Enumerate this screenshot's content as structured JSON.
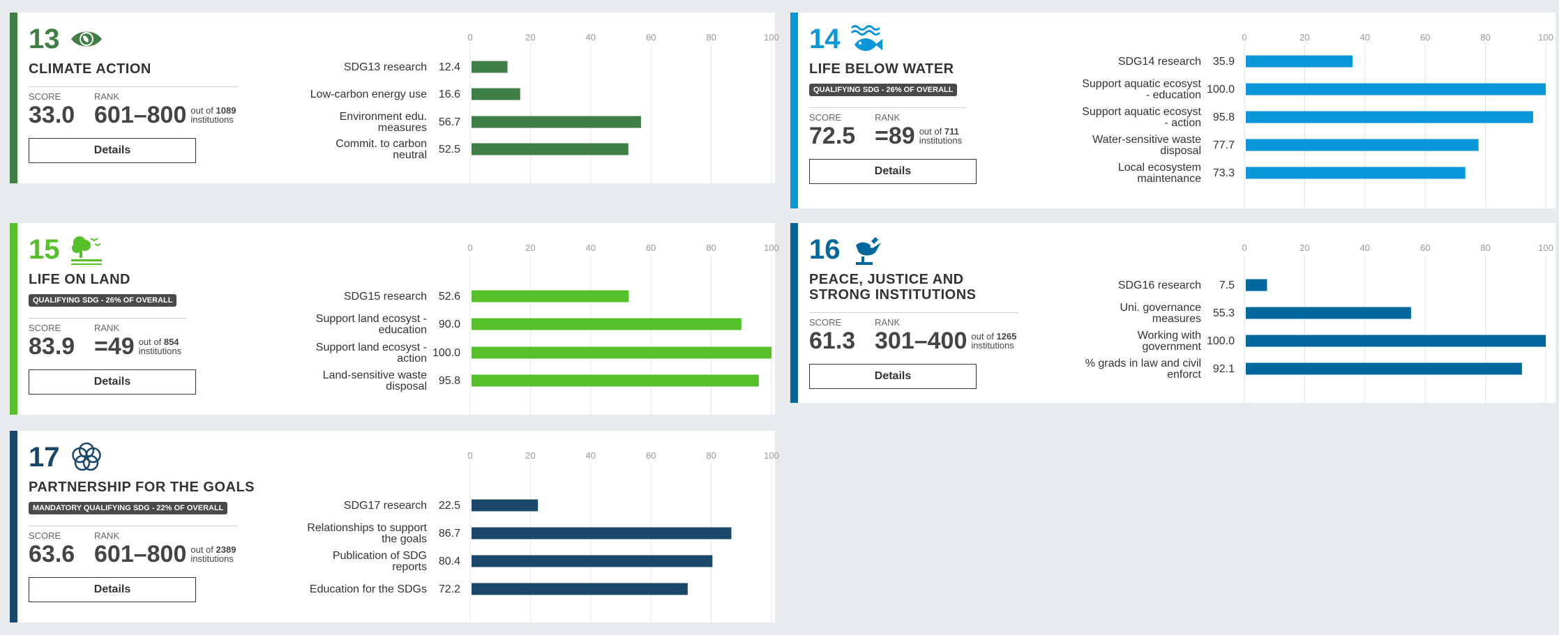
{
  "cards": [
    {
      "id": "13",
      "number": "13",
      "title": "CLIMATE ACTION",
      "color": "#3f7e44",
      "badge": "",
      "icon": "eye-earth-icon",
      "score_label": "SCORE",
      "score": "33.0",
      "rank_label": "RANK",
      "rank": "601–800",
      "out_of_prefix": "out of",
      "out_of_count": "1089",
      "out_of_suffix": "institutions",
      "details_label": "Details",
      "chart_data": {
        "type": "bar",
        "categories": [
          [
            "SDG13 research"
          ],
          [
            "Low-carbon energy use"
          ],
          [
            "Environment edu.",
            "measures"
          ],
          [
            "Commit. to carbon",
            "neutral"
          ]
        ],
        "values": [
          12.4,
          16.6,
          56.7,
          52.5
        ],
        "value_labels": [
          "12.4",
          "16.6",
          "56.7",
          "52.5"
        ],
        "xlim": [
          0,
          100
        ],
        "ticks": [
          "0",
          "20",
          "40",
          "60",
          "80",
          "100"
        ]
      }
    },
    {
      "id": "14",
      "number": "14",
      "title": "LIFE BELOW WATER",
      "color": "#0a97d9",
      "badge": "QUALIFYING SDG - 26% OF OVERALL",
      "icon": "fish-icon",
      "score_label": "SCORE",
      "score": "72.5",
      "rank_label": "RANK",
      "rank": "=89",
      "out_of_prefix": "out of",
      "out_of_count": "711",
      "out_of_suffix": "institutions",
      "details_label": "Details",
      "chart_data": {
        "type": "bar",
        "categories": [
          [
            "SDG14 research"
          ],
          [
            "Support aquatic ecosyst",
            "- education"
          ],
          [
            "Support aquatic ecosyst",
            "- action"
          ],
          [
            "Water-sensitive waste",
            "disposal"
          ],
          [
            "Local ecosystem",
            "maintenance"
          ]
        ],
        "values": [
          35.9,
          100.0,
          95.8,
          77.7,
          73.3
        ],
        "value_labels": [
          "35.9",
          "100.0",
          "95.8",
          "77.7",
          "73.3"
        ],
        "xlim": [
          0,
          100
        ],
        "ticks": [
          "0",
          "20",
          "40",
          "60",
          "80",
          "100"
        ]
      }
    },
    {
      "id": "15",
      "number": "15",
      "title": "LIFE ON LAND",
      "color": "#56c02b",
      "badge": "QUALIFYING SDG - 26% OF OVERALL",
      "icon": "tree-bird-icon",
      "score_label": "SCORE",
      "score": "83.9",
      "rank_label": "RANK",
      "rank": "=49",
      "out_of_prefix": "out of",
      "out_of_count": "854",
      "out_of_suffix": "institutions",
      "details_label": "Details",
      "chart_data": {
        "type": "bar",
        "categories": [
          [
            "SDG15 research"
          ],
          [
            "Support land ecosyst -",
            "education"
          ],
          [
            "Support land ecosyst -",
            "action"
          ],
          [
            "Land-sensitive waste",
            "disposal"
          ]
        ],
        "values": [
          52.6,
          90.0,
          100.0,
          95.8
        ],
        "value_labels": [
          "52.6",
          "90.0",
          "100.0",
          "95.8"
        ],
        "xlim": [
          0,
          100
        ],
        "ticks": [
          "0",
          "20",
          "40",
          "60",
          "80",
          "100"
        ]
      }
    },
    {
      "id": "16",
      "number": "16",
      "title": "PEACE, JUSTICE AND STRONG INSTITUTIONS",
      "color": "#00689d",
      "badge": "",
      "icon": "dove-gavel-icon",
      "score_label": "SCORE",
      "score": "61.3",
      "rank_label": "RANK",
      "rank": "301–400",
      "out_of_prefix": "out of",
      "out_of_count": "1265",
      "out_of_suffix": "institutions",
      "details_label": "Details",
      "chart_data": {
        "type": "bar",
        "categories": [
          [
            "SDG16 research"
          ],
          [
            "Uni. governance",
            "measures"
          ],
          [
            "Working with",
            "government"
          ],
          [
            "% grads in law and civil",
            "enforct"
          ]
        ],
        "values": [
          7.5,
          55.3,
          100.0,
          92.1
        ],
        "value_labels": [
          "7.5",
          "55.3",
          "100.0",
          "92.1"
        ],
        "xlim": [
          0,
          100
        ],
        "ticks": [
          "0",
          "20",
          "40",
          "60",
          "80",
          "100"
        ]
      }
    },
    {
      "id": "17",
      "number": "17",
      "title": "PARTNERSHIP FOR THE GOALS",
      "color": "#19486a",
      "badge": "MANDATORY QUALIFYING SDG - 22% OF OVERALL",
      "icon": "flower-rings-icon",
      "score_label": "SCORE",
      "score": "63.6",
      "rank_label": "RANK",
      "rank": "601–800",
      "out_of_prefix": "out of",
      "out_of_count": "2389",
      "out_of_suffix": "institutions",
      "details_label": "Details",
      "chart_data": {
        "type": "bar",
        "categories": [
          [
            "SDG17 research"
          ],
          [
            "Relationships to support",
            "the goals"
          ],
          [
            "Publication of SDG",
            "reports"
          ],
          [
            "Education for the SDGs"
          ]
        ],
        "values": [
          22.5,
          86.7,
          80.4,
          72.2
        ],
        "value_labels": [
          "22.5",
          "86.7",
          "80.4",
          "72.2"
        ],
        "xlim": [
          0,
          100
        ],
        "ticks": [
          "0",
          "20",
          "40",
          "60",
          "80",
          "100"
        ]
      }
    }
  ]
}
